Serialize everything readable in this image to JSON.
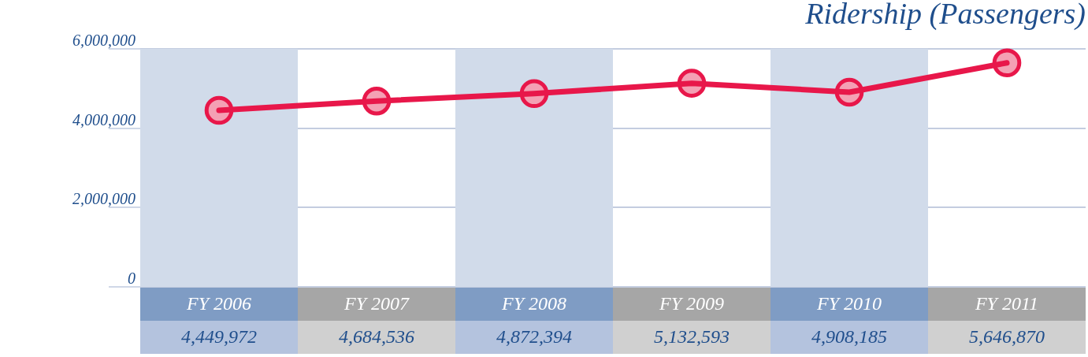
{
  "chart_data": {
    "type": "line",
    "title": "Ridership (Passengers)",
    "categories": [
      "FY 2006",
      "FY 2007",
      "FY 2008",
      "FY 2009",
      "FY 2010",
      "FY 2011"
    ],
    "series": [
      {
        "color": "#e8174a",
        "values": [
          4449972,
          4684536,
          4872394,
          5132593,
          4908185,
          5646870
        ],
        "value_labels": [
          "4,449,972",
          "4,684,536",
          "4,872,394",
          "5,132,593",
          "4,908,185",
          "5,646,870"
        ]
      }
    ],
    "ylim": [
      0,
      6000000
    ],
    "yticks": [
      0,
      {
        "value": 2000000,
        "label": "2,000,000"
      },
      {
        "value": 4000000,
        "label": "4,000,000"
      },
      {
        "value": 6000000,
        "label": "6,000,000"
      }
    ],
    "grid": "y",
    "marker": "circle",
    "bands": [
      {
        "axis": "x",
        "from": "FY 2006",
        "to": "FY 2006",
        "color": "#d1dbea"
      },
      {
        "axis": "x",
        "from": "FY 2008",
        "to": "FY 2008",
        "color": "#d1dbea"
      },
      {
        "axis": "x",
        "from": "FY 2010",
        "to": "FY 2010",
        "color": "#d1dbea"
      }
    ]
  }
}
